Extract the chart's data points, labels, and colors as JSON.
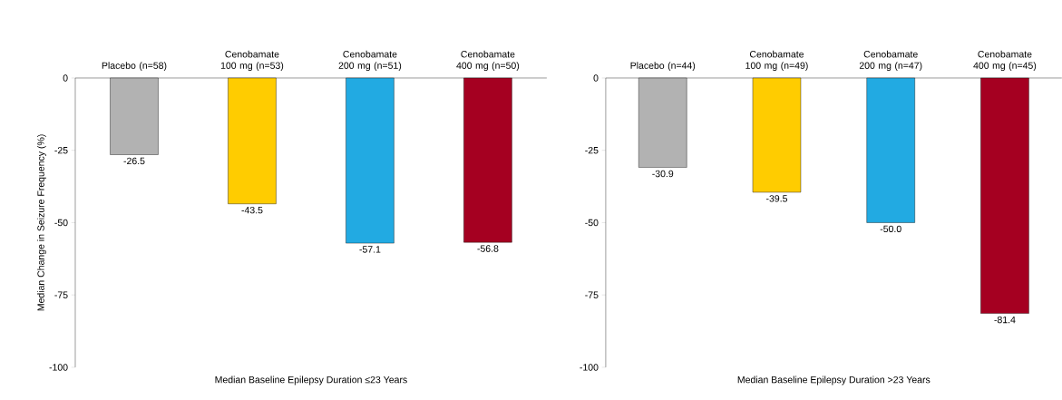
{
  "chart_data": [
    {
      "type": "bar",
      "categories": [
        "Placebo (n=58)",
        "Cenobamate 100 mg (n=53)",
        "Cenobamate 200 mg (n=51)",
        "Cenobamate 400 mg (n=50)"
      ],
      "values": [
        -26.5,
        -43.5,
        -57.1,
        -56.8
      ],
      "colors": [
        "#b2b2b2",
        "#ffcc00",
        "#22aae2",
        "#a50021"
      ],
      "ylim": [
        -100,
        0
      ],
      "yticks": [
        0,
        -25,
        -50,
        -75,
        -100
      ],
      "ylabel": "Median Change in Seizure Frequency (%)",
      "xlabel": "Median Baseline Epilepsy Duration ≤23 Years",
      "data_labels": true
    },
    {
      "type": "bar",
      "categories": [
        "Placebo (n=44)",
        "Cenobamate 100 mg (n=49)",
        "Cenobamate 200 mg (n=47)",
        "Cenobamate 400 mg (n=45)"
      ],
      "values": [
        -30.9,
        -39.5,
        -50.0,
        -81.4
      ],
      "value_labels": [
        "-30.9",
        "-39.5",
        "-50.0",
        "-81.4"
      ],
      "colors": [
        "#b2b2b2",
        "#ffcc00",
        "#22aae2",
        "#a50021"
      ],
      "ylim": [
        -100,
        0
      ],
      "yticks": [
        0,
        -25,
        -50,
        -75,
        -100
      ],
      "xlabel": "Median Baseline Epilepsy Duration >23 Years"
    }
  ]
}
